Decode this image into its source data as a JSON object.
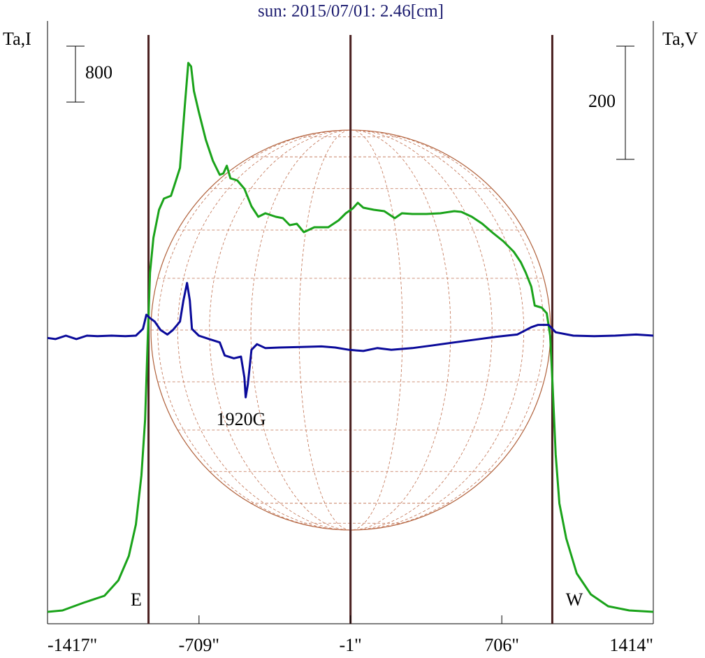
{
  "chart_data": {
    "type": "line",
    "title": "sun: 2015/07/01: 2.46[cm]",
    "ylabel": "Ta,I",
    "y2label": "Ta,V",
    "xlim": [
      -1417,
      1414
    ],
    "xticks": [
      {
        "value": -1417,
        "label": "-1417\""
      },
      {
        "value": -709,
        "label": "-709\""
      },
      {
        "value": -1,
        "label": "-1\""
      },
      {
        "value": 706,
        "label": "706\""
      },
      {
        "value": 1414,
        "label": "1414\""
      }
    ],
    "ylim": [
      -170,
      8450
    ],
    "y2lim": [
      -509,
      556
    ],
    "scale_bars": [
      {
        "value": 800,
        "label": "800",
        "axis": "y"
      },
      {
        "value": 200,
        "label": "200",
        "axis": "y2"
      }
    ],
    "vlines": [
      -945,
      -1,
      942
    ],
    "vline_color": "#4a2020",
    "annotations": [
      "E",
      "W",
      "1920G"
    ],
    "series": [
      {
        "name": "I",
        "color": "#1aa31a",
        "axis": "y",
        "x": [
          -1417,
          -1347,
          -1249,
          -1151,
          -1086,
          -1037,
          -1004,
          -978,
          -961,
          -948,
          -938,
          -922,
          -896,
          -873,
          -840,
          -824,
          -798,
          -775,
          -759,
          -746,
          -733,
          -710,
          -677,
          -644,
          -612,
          -595,
          -579,
          -562,
          -530,
          -497,
          -464,
          -432,
          -399,
          -350,
          -317,
          -285,
          -252,
          -219,
          -170,
          -105,
          -56,
          -23,
          10,
          33,
          59,
          108,
          157,
          206,
          239,
          288,
          353,
          419,
          484,
          517,
          566,
          615,
          664,
          713,
          762,
          795,
          818,
          844,
          860,
          893,
          916,
          932,
          942,
          958,
          975,
          1007,
          1056,
          1122,
          1203,
          1302,
          1414
        ],
        "values": [
          0,
          20,
          130,
          230,
          450,
          800,
          1250,
          1950,
          2750,
          3950,
          4850,
          5350,
          5750,
          5910,
          5950,
          6100,
          6350,
          7250,
          7850,
          7800,
          7450,
          7150,
          6750,
          6450,
          6250,
          6270,
          6380,
          6200,
          6170,
          6050,
          5800,
          5650,
          5700,
          5650,
          5630,
          5530,
          5550,
          5430,
          5500,
          5500,
          5600,
          5700,
          5770,
          5850,
          5780,
          5750,
          5730,
          5630,
          5700,
          5690,
          5690,
          5700,
          5730,
          5720,
          5650,
          5550,
          5420,
          5300,
          5150,
          5000,
          4850,
          4650,
          4380,
          4350,
          4270,
          3950,
          3350,
          2250,
          1550,
          1050,
          550,
          250,
          80,
          20,
          0
        ]
      },
      {
        "name": "V",
        "color": "#0a0a9a",
        "axis": "y2",
        "x": [
          -1417,
          -1380,
          -1331,
          -1282,
          -1233,
          -1184,
          -1118,
          -1053,
          -1004,
          -971,
          -955,
          -938,
          -916,
          -889,
          -857,
          -831,
          -798,
          -782,
          -765,
          -752,
          -742,
          -710,
          -661,
          -612,
          -589,
          -546,
          -513,
          -497,
          -491,
          -481,
          -464,
          -438,
          -399,
          -334,
          -235,
          -137,
          -72,
          -7,
          59,
          124,
          190,
          288,
          386,
          484,
          582,
          680,
          778,
          844,
          876,
          925,
          958,
          1040,
          1138,
          1236,
          1334,
          1414
        ],
        "values": [
          -4,
          -6,
          0,
          -6,
          0,
          -1,
          0,
          -1,
          0,
          12,
          37,
          31,
          25,
          10,
          2,
          10,
          25,
          62,
          93,
          62,
          12,
          0,
          -6,
          -12,
          -35,
          -40,
          -37,
          -74,
          -109,
          -86,
          -25,
          -15,
          -22,
          -21,
          -20,
          -19,
          -21,
          -25,
          -27,
          -22,
          -25,
          -22,
          -17,
          -12,
          -7,
          -2,
          2,
          15,
          19,
          19,
          6,
          0,
          -1,
          0,
          2,
          0
        ]
      }
    ]
  }
}
